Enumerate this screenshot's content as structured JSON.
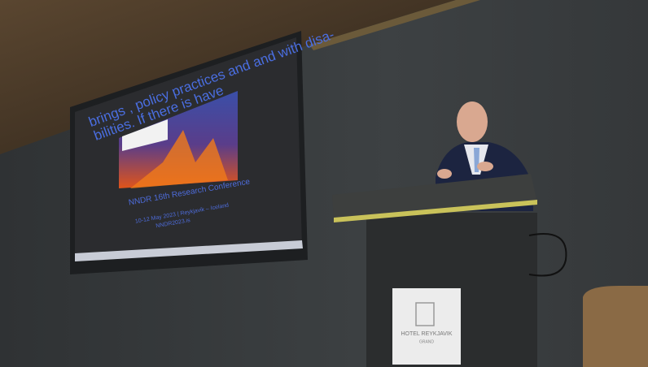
{
  "screen": {
    "heading_line1": "brings , policy practices and and with disa-",
    "heading_line2": "bilities. If there is have",
    "conference": "NNDR 16th Research Conference",
    "dates": "10-12 May 2023 | Reykjavik – Iceland",
    "website": "NNDR2023.is"
  },
  "podium_sign": {
    "line1": "HOTEL REYKJAVIK",
    "line2": "GRAND"
  }
}
